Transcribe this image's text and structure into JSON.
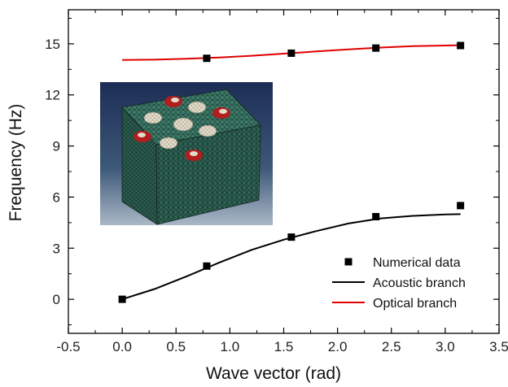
{
  "chart_data": {
    "type": "line",
    "xlabel": "Wave vector (rad)",
    "ylabel": "Frequency (Hz)",
    "xlim": [
      -0.5,
      3.5
    ],
    "ylim": [
      -2,
      17
    ],
    "x_ticks": [
      "-0.5",
      "0.0",
      "0.5",
      "1.0",
      "1.5",
      "2.0",
      "2.5",
      "3.0",
      "3.5"
    ],
    "y_ticks": [
      "0",
      "3",
      "6",
      "9",
      "12",
      "15"
    ],
    "grid": false,
    "legend_position": "bottom-right",
    "series": [
      {
        "name": "Numerical data",
        "kind": "scatter",
        "marker": "square",
        "color": "#000000",
        "x": [
          0.0,
          0.785,
          1.571,
          2.356,
          3.142,
          0.785,
          1.571,
          2.356,
          3.142
        ],
        "y": [
          0.0,
          1.95,
          3.65,
          4.85,
          5.5,
          14.15,
          14.45,
          14.75,
          14.9
        ]
      },
      {
        "name": "Acoustic branch",
        "kind": "line",
        "color": "#000000",
        "x": [
          0.0,
          0.3,
          0.6,
          0.9,
          1.2,
          1.5,
          1.8,
          2.1,
          2.4,
          2.7,
          3.0,
          3.142
        ],
        "y": [
          0.0,
          0.6,
          1.35,
          2.15,
          2.9,
          3.5,
          4.0,
          4.45,
          4.75,
          4.9,
          4.98,
          5.0
        ]
      },
      {
        "name": "Optical branch",
        "kind": "line",
        "color": "#e00000",
        "x": [
          0.0,
          0.3,
          0.6,
          0.9,
          1.2,
          1.5,
          1.8,
          2.1,
          2.4,
          2.7,
          3.0,
          3.142
        ],
        "y": [
          14.05,
          14.07,
          14.12,
          14.2,
          14.3,
          14.42,
          14.55,
          14.67,
          14.78,
          14.86,
          14.9,
          14.92
        ]
      }
    ],
    "inset": {
      "subject": "meshed cubic cell with circular inclusions"
    }
  }
}
